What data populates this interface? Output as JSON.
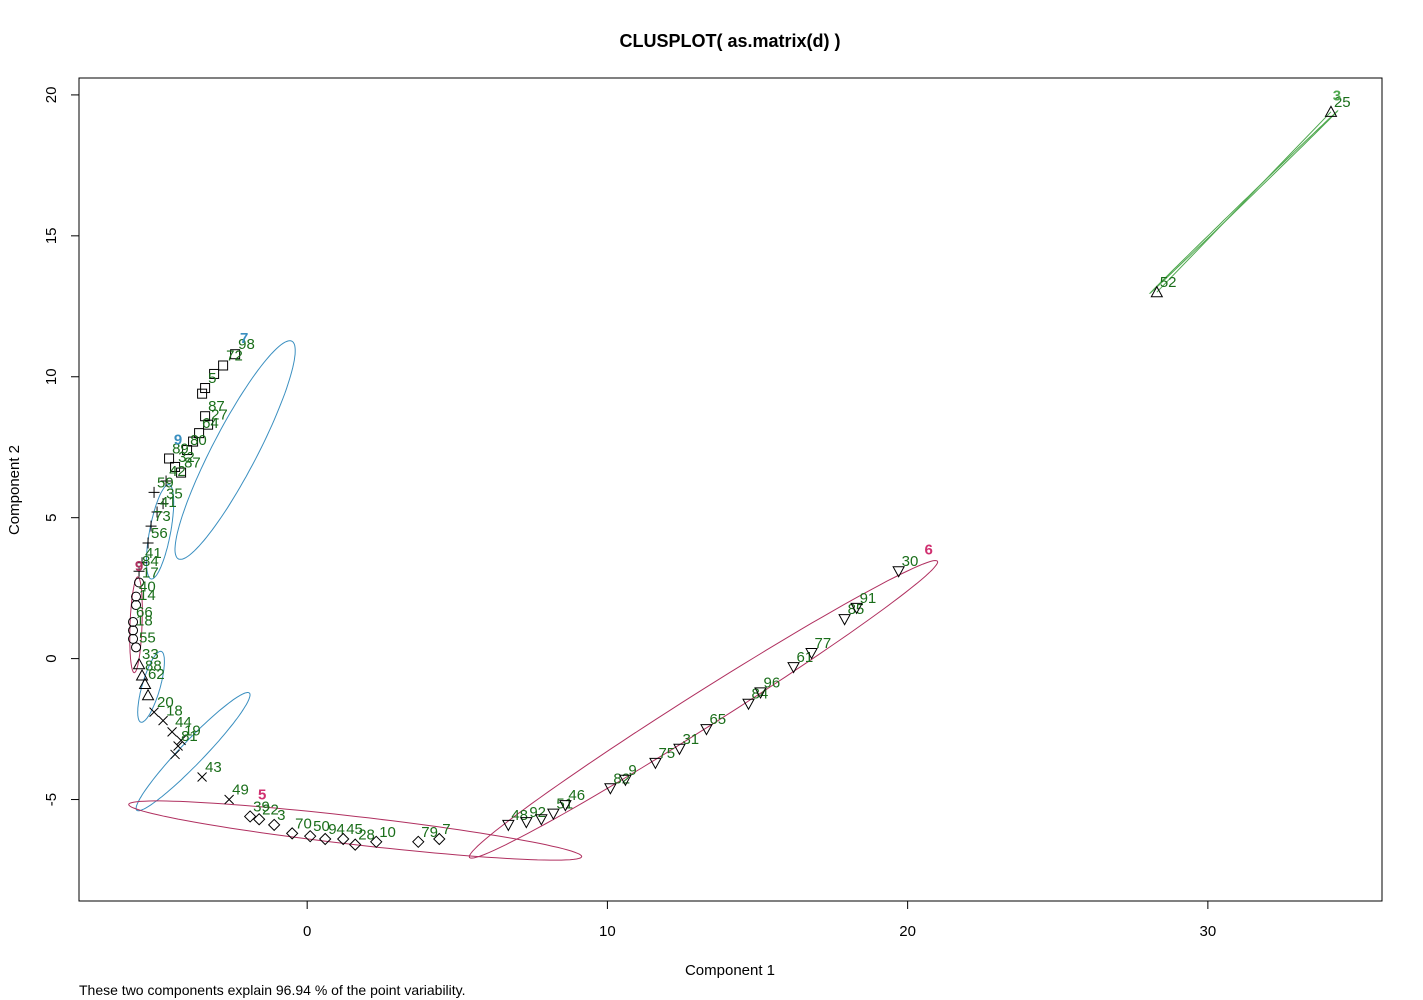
{
  "chart_data": {
    "type": "scatter",
    "title": "CLUSPLOT( as.matrix(d) )",
    "xlabel": "Component 1",
    "ylabel": "Component 2",
    "xlim": [
      -7.6,
      35.8
    ],
    "ylim": [
      -8.6,
      20.6
    ],
    "xticks": [
      0,
      10,
      20,
      30
    ],
    "yticks": [
      -5,
      0,
      5,
      10,
      15,
      20
    ],
    "note": "These two components explain 96.94 % of the point variability.",
    "colors": {
      "label": "#1a6e1a",
      "ellipse_blue": "#3a8fc0",
      "ellipse_red": "#b03060",
      "ellipse_green": "#4ea84e",
      "label_red": "#d03070",
      "label_blue": "#3a8fc0"
    },
    "clusters": [
      {
        "ellipse": {
          "cx": -2.4,
          "cy": 7.4,
          "rx": 4.3,
          "ry": 0.75,
          "angle_deg": 64,
          "color": "#3a8fc0"
        },
        "points": [
          {
            "x": -2.4,
            "y": 10.8,
            "label": "98",
            "marker": "square"
          },
          {
            "x": -2.8,
            "y": 10.4,
            "label": "72",
            "marker": "square"
          },
          {
            "x": -3.1,
            "y": 10.1,
            "label": "",
            "marker": "square"
          },
          {
            "x": -3.4,
            "y": 9.6,
            "label": "5",
            "marker": "square"
          },
          {
            "x": -3.5,
            "y": 9.4,
            "label": "",
            "marker": "square"
          },
          {
            "x": -3.4,
            "y": 8.6,
            "label": "87",
            "marker": "square"
          },
          {
            "x": -3.3,
            "y": 8.3,
            "label": "27",
            "marker": "square"
          },
          {
            "x": -3.6,
            "y": 8.0,
            "label": "64",
            "marker": "square"
          },
          {
            "x": -3.8,
            "y": 7.7,
            "label": "",
            "marker": "square"
          },
          {
            "x": -4.0,
            "y": 7.4,
            "label": "80",
            "marker": "square"
          },
          {
            "x": -4.6,
            "y": 7.1,
            "label": "89",
            "marker": "square"
          },
          {
            "x": -4.4,
            "y": 6.8,
            "label": "32",
            "marker": "square"
          },
          {
            "x": -4.2,
            "y": 6.6,
            "label": "87",
            "marker": "square"
          }
        ]
      },
      {
        "ellipse": {
          "cx": -4.9,
          "cy": 4.5,
          "rx": 1.7,
          "ry": 0.35,
          "angle_deg": 80,
          "color": "#3a8fc0"
        },
        "points": [
          {
            "x": -4.7,
            "y": 6.3,
            "label": "42",
            "marker": "plus"
          },
          {
            "x": -5.1,
            "y": 5.9,
            "label": "59",
            "marker": "plus"
          },
          {
            "x": -4.8,
            "y": 5.5,
            "label": "35",
            "marker": "plus"
          },
          {
            "x": -5.0,
            "y": 5.2,
            "label": "41",
            "marker": "plus"
          },
          {
            "x": -5.2,
            "y": 4.7,
            "label": "73",
            "marker": "plus"
          },
          {
            "x": -5.3,
            "y": 4.1,
            "label": "56",
            "marker": "plus"
          },
          {
            "x": -5.5,
            "y": 3.4,
            "label": "41",
            "marker": "plus"
          },
          {
            "x": -5.6,
            "y": 3.1,
            "label": "84",
            "marker": "plus"
          }
        ]
      },
      {
        "ellipse": {
          "cx": -5.7,
          "cy": 1.2,
          "rx": 1.7,
          "ry": 0.2,
          "angle_deg": 88,
          "color": "#b03060"
        },
        "points": [
          {
            "x": -5.6,
            "y": 2.7,
            "label": "17",
            "marker": "circle"
          },
          {
            "x": -5.7,
            "y": 2.2,
            "label": "40",
            "marker": "circle"
          },
          {
            "x": -5.7,
            "y": 1.9,
            "label": "14",
            "marker": "circle"
          },
          {
            "x": -5.8,
            "y": 1.3,
            "label": "66",
            "marker": "circle"
          },
          {
            "x": -5.8,
            "y": 1.0,
            "label": "18",
            "marker": "circle"
          },
          {
            "x": -5.8,
            "y": 0.7,
            "label": "",
            "marker": "circle"
          },
          {
            "x": -5.7,
            "y": 0.4,
            "label": "55",
            "marker": "circle"
          }
        ]
      },
      {
        "ellipse": {
          "cx": -5.2,
          "cy": -1.0,
          "rx": 1.3,
          "ry": 0.3,
          "angle_deg": 75,
          "color": "#3a8fc0"
        },
        "points": [
          {
            "x": -5.6,
            "y": -0.2,
            "label": "33",
            "marker": "triangle"
          },
          {
            "x": -5.5,
            "y": -0.6,
            "label": "88",
            "marker": "triangle"
          },
          {
            "x": -5.4,
            "y": -0.9,
            "label": "62",
            "marker": "triangle"
          },
          {
            "x": -5.3,
            "y": -1.3,
            "label": "",
            "marker": "triangle"
          }
        ]
      },
      {
        "ellipse": {
          "cx": -3.8,
          "cy": -3.3,
          "rx": 2.8,
          "ry": 0.4,
          "angle_deg": 48,
          "color": "#3a8fc0"
        },
        "points": [
          {
            "x": -5.1,
            "y": -1.9,
            "label": "20",
            "marker": "x"
          },
          {
            "x": -4.8,
            "y": -2.2,
            "label": "18",
            "marker": "x"
          },
          {
            "x": -4.5,
            "y": -2.6,
            "label": "44",
            "marker": "x"
          },
          {
            "x": -4.2,
            "y": -2.9,
            "label": "19",
            "marker": "x"
          },
          {
            "x": -4.3,
            "y": -3.1,
            "label": "81",
            "marker": "x"
          },
          {
            "x": -4.4,
            "y": -3.4,
            "label": "",
            "marker": "x"
          },
          {
            "x": -3.5,
            "y": -4.2,
            "label": "43",
            "marker": "x"
          },
          {
            "x": -2.6,
            "y": -5.0,
            "label": "49",
            "marker": "x"
          }
        ]
      },
      {
        "ellipse": {
          "cx": 1.6,
          "cy": -6.1,
          "rx": 7.6,
          "ry": 0.5,
          "angle_deg": -7,
          "color": "#b03060"
        },
        "points": [
          {
            "x": -1.9,
            "y": -5.6,
            "label": "39",
            "marker": "diamond"
          },
          {
            "x": -1.6,
            "y": -5.7,
            "label": "22",
            "marker": "diamond"
          },
          {
            "x": -1.1,
            "y": -5.9,
            "label": "3",
            "marker": "diamond"
          },
          {
            "x": -0.5,
            "y": -6.2,
            "label": "70",
            "marker": "diamond"
          },
          {
            "x": 0.1,
            "y": -6.3,
            "label": "50",
            "marker": "diamond"
          },
          {
            "x": 0.6,
            "y": -6.4,
            "label": "94",
            "marker": "diamond"
          },
          {
            "x": 1.2,
            "y": -6.4,
            "label": "45",
            "marker": "diamond"
          },
          {
            "x": 1.6,
            "y": -6.6,
            "label": "28",
            "marker": "diamond"
          },
          {
            "x": 2.3,
            "y": -6.5,
            "label": "10",
            "marker": "diamond"
          },
          {
            "x": 3.7,
            "y": -6.5,
            "label": "79",
            "marker": "diamond"
          },
          {
            "x": 4.4,
            "y": -6.4,
            "label": "7",
            "marker": "diamond"
          }
        ]
      },
      {
        "ellipse": {
          "cx": 13.2,
          "cy": -1.8,
          "rx": 9.4,
          "ry": 0.6,
          "angle_deg": 34,
          "color": "#b03060"
        },
        "points": [
          {
            "x": 6.7,
            "y": -5.9,
            "label": "48",
            "marker": "triangle-down"
          },
          {
            "x": 7.3,
            "y": -5.8,
            "label": "92",
            "marker": "triangle-down"
          },
          {
            "x": 7.8,
            "y": -5.7,
            "label": "",
            "marker": "triangle-down"
          },
          {
            "x": 8.2,
            "y": -5.5,
            "label": "51",
            "marker": "triangle-down"
          },
          {
            "x": 8.6,
            "y": -5.2,
            "label": "46",
            "marker": "triangle-down"
          },
          {
            "x": 10.1,
            "y": -4.6,
            "label": "82",
            "marker": "triangle-down"
          },
          {
            "x": 10.6,
            "y": -4.3,
            "label": "9",
            "marker": "triangle-down"
          },
          {
            "x": 11.6,
            "y": -3.7,
            "label": "75",
            "marker": "triangle-down"
          },
          {
            "x": 12.4,
            "y": -3.2,
            "label": "31",
            "marker": "triangle-down"
          },
          {
            "x": 13.3,
            "y": -2.5,
            "label": "65",
            "marker": "triangle-down"
          },
          {
            "x": 14.7,
            "y": -1.6,
            "label": "84",
            "marker": "triangle-down"
          },
          {
            "x": 15.1,
            "y": -1.2,
            "label": "96",
            "marker": "triangle-down"
          },
          {
            "x": 16.2,
            "y": -0.3,
            "label": "61",
            "marker": "triangle-down"
          },
          {
            "x": 16.8,
            "y": 0.2,
            "label": "77",
            "marker": "triangle-down"
          },
          {
            "x": 17.9,
            "y": 1.4,
            "label": "85",
            "marker": "triangle-down"
          },
          {
            "x": 18.3,
            "y": 1.8,
            "label": "91",
            "marker": "triangle-down"
          },
          {
            "x": 19.7,
            "y": 3.1,
            "label": "30",
            "marker": "triangle-down"
          }
        ]
      },
      {
        "ellipse": {
          "cx": 31.2,
          "cy": 16.2,
          "rx": 4.5,
          "ry": 0.03,
          "angle_deg": 46,
          "color": "#4ea84e"
        },
        "points": [
          {
            "x": 28.3,
            "y": 13.0,
            "label": "52",
            "marker": "triangle"
          },
          {
            "x": 34.1,
            "y": 19.4,
            "label": "25",
            "marker": "triangle"
          }
        ]
      }
    ],
    "cluster_labels": [
      {
        "x": 20.7,
        "y": 3.7,
        "label": "6",
        "color": "#d03070"
      },
      {
        "x": -2.1,
        "y": 11.2,
        "label": "7",
        "color": "#3a8fc0"
      },
      {
        "x": -4.3,
        "y": 7.6,
        "label": "9",
        "color": "#3a8fc0"
      },
      {
        "x": -5.6,
        "y": 3.1,
        "label": "9",
        "color": "#b03060"
      },
      {
        "x": -1.5,
        "y": -5.0,
        "label": "5",
        "color": "#d03070"
      },
      {
        "x": 34.3,
        "y": 19.8,
        "label": "3",
        "color": "#4ea84e"
      }
    ]
  }
}
